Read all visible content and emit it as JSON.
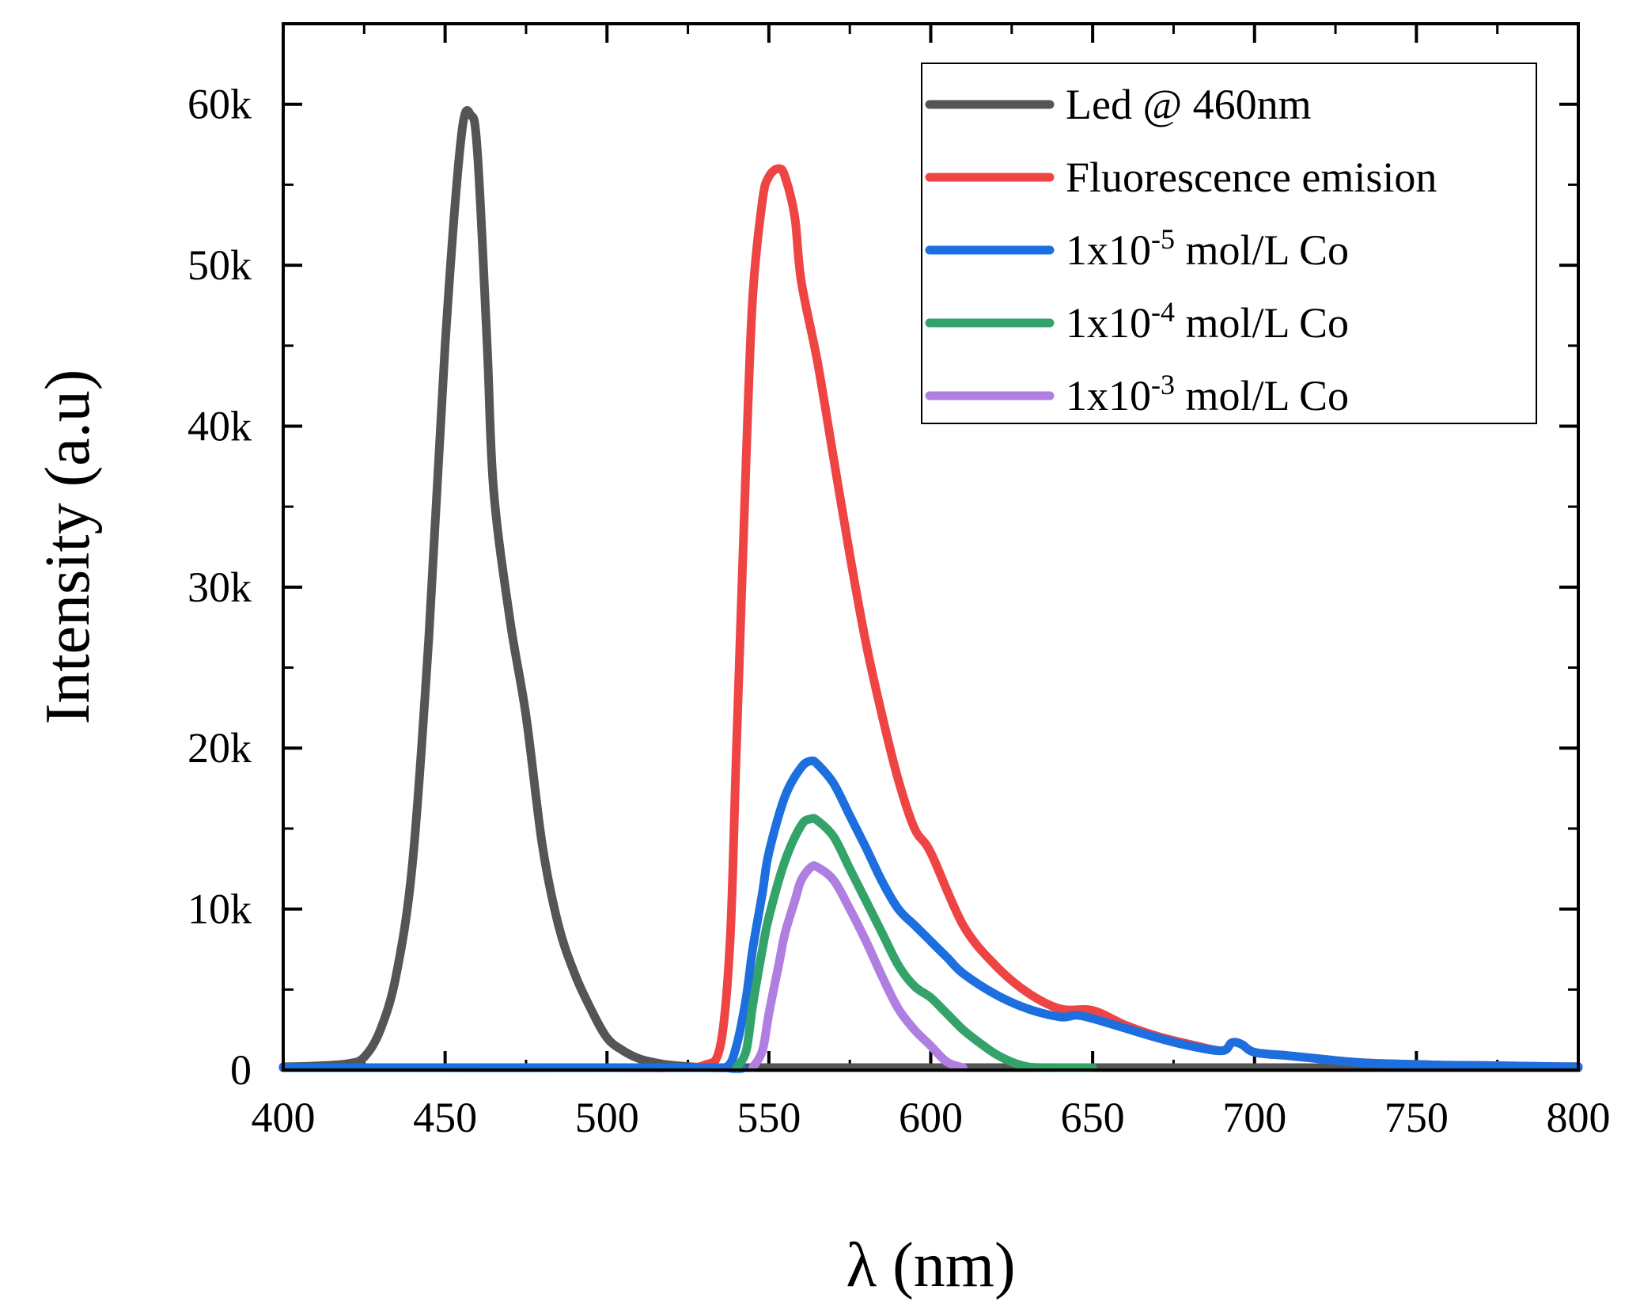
{
  "chart_data": {
    "type": "line",
    "title": "",
    "xlabel": "λ (nm)",
    "ylabel": "Intensity (a.u)",
    "xlim": [
      400,
      800
    ],
    "ylim": [
      0,
      65000
    ],
    "xticks": [
      400,
      450,
      500,
      550,
      600,
      650,
      700,
      750,
      800
    ],
    "yticks": [
      0,
      10000,
      20000,
      30000,
      40000,
      50000,
      60000
    ],
    "ytick_labels": [
      "0",
      "10k",
      "20k",
      "30k",
      "40k",
      "50k",
      "60k"
    ],
    "legend_position": "top-right",
    "series": [
      {
        "name": "Led @ 460nm",
        "color": "#555555",
        "x": [
          400,
          410,
          420,
          425,
          430,
          435,
          440,
          445,
          450,
          455,
          458,
          460,
          463,
          465,
          470,
          475,
          480,
          485,
          490,
          495,
          500,
          505,
          510,
          515,
          520,
          530,
          540,
          560,
          600,
          650,
          700,
          750,
          800
        ],
        "y": [
          200,
          250,
          400,
          800,
          2500,
          6000,
          13000,
          27000,
          45000,
          58000,
          59300,
          57000,
          45000,
          36000,
          28000,
          22000,
          14000,
          9000,
          6000,
          3800,
          2000,
          1200,
          700,
          450,
          300,
          150,
          80,
          50,
          30,
          20,
          10,
          5,
          0
        ]
      },
      {
        "name": "Fluorescence emision",
        "color": "#ef4444",
        "x": [
          400,
          500,
          520,
          530,
          535,
          538,
          540,
          543,
          545,
          548,
          550,
          553,
          555,
          558,
          560,
          565,
          570,
          575,
          580,
          585,
          590,
          595,
          600,
          610,
          620,
          630,
          640,
          650,
          660,
          670,
          680,
          690,
          693,
          696,
          700,
          710,
          720,
          730,
          740,
          750,
          760,
          770,
          780,
          790,
          800
        ],
        "y": [
          0,
          0,
          100,
          300,
          1500,
          8000,
          20000,
          38000,
          48000,
          54000,
          55500,
          56000,
          55500,
          53000,
          49000,
          44000,
          38000,
          32000,
          26500,
          22000,
          18000,
          15000,
          13500,
          9000,
          6500,
          4800,
          3800,
          3700,
          2800,
          2100,
          1600,
          1200,
          1700,
          1600,
          1100,
          900,
          700,
          500,
          400,
          350,
          300,
          280,
          250,
          220,
          200
        ]
      },
      {
        "name": "1x10-5 mol/L Co",
        "sup": "-5",
        "color": "#1d6fe0",
        "x": [
          400,
          530,
          537,
          540,
          543,
          545,
          548,
          550,
          555,
          560,
          563,
          565,
          570,
          575,
          580,
          585,
          590,
          595,
          600,
          605,
          610,
          620,
          630,
          640,
          645,
          650,
          660,
          670,
          680,
          690,
          693,
          696,
          700,
          710,
          720,
          730,
          740,
          750,
          760,
          770,
          780,
          790,
          800
        ],
        "y": [
          0,
          0,
          200,
          1500,
          4500,
          7500,
          11000,
          13500,
          17000,
          18800,
          19200,
          19000,
          17800,
          15800,
          13800,
          11700,
          10000,
          9000,
          8000,
          7000,
          6000,
          4700,
          3800,
          3300,
          3400,
          3200,
          2600,
          2000,
          1500,
          1200,
          1700,
          1600,
          1100,
          900,
          700,
          500,
          400,
          350,
          300,
          280,
          250,
          220,
          200
        ]
      },
      {
        "name": "1x10-4 mol/L Co",
        "sup": "-4",
        "color": "#33a36a",
        "x": [
          540,
          543,
          545,
          548,
          550,
          555,
          560,
          563,
          565,
          570,
          575,
          580,
          585,
          590,
          595,
          600,
          605,
          610,
          615,
          620,
          625,
          630,
          635,
          640,
          645,
          650
        ],
        "y": [
          0,
          1200,
          4000,
          7500,
          9500,
          13000,
          15200,
          15600,
          15500,
          14500,
          12500,
          10500,
          8500,
          6500,
          5200,
          4500,
          3500,
          2500,
          1700,
          1000,
          500,
          200,
          50,
          0,
          0,
          0
        ]
      },
      {
        "name": "1x10-3 mol/L Co",
        "sup": "-3",
        "color": "#b07ee0",
        "x": [
          545,
          548,
          550,
          553,
          555,
          558,
          560,
          563,
          565,
          570,
          575,
          580,
          585,
          590,
          595,
          600,
          605,
          610
        ],
        "y": [
          0,
          1200,
          3500,
          6500,
          8500,
          10500,
          11800,
          12600,
          12600,
          11800,
          10000,
          8000,
          5800,
          3800,
          2500,
          1500,
          500,
          0
        ]
      }
    ]
  }
}
